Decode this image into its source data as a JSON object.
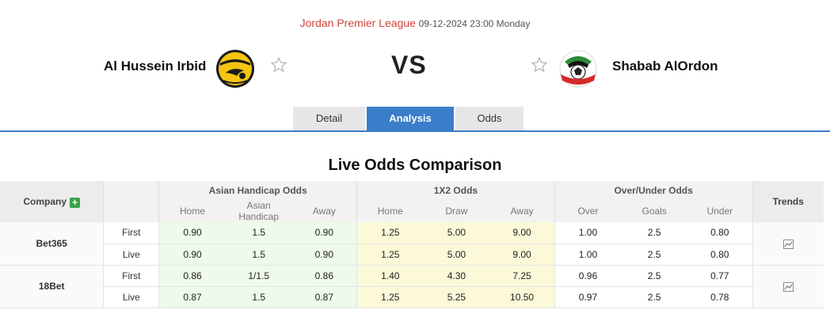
{
  "match": {
    "league": "Jordan Premier League",
    "datetime": "09-12-2024 23:00 Monday",
    "home_team": "Al Hussein Irbid",
    "away_team": "Shabab AlOrdon",
    "vs": "VS"
  },
  "tabs": [
    {
      "label": "Detail",
      "active": false
    },
    {
      "label": "Analysis",
      "active": true
    },
    {
      "label": "Odds",
      "active": false
    }
  ],
  "section_title": "Live Odds Comparison",
  "table": {
    "company_header": "Company",
    "groups": [
      "Asian Handicap Odds",
      "1X2 Odds",
      "Over/Under Odds"
    ],
    "trends_header": "Trends",
    "subheaders": [
      "Home",
      "Asian Handicap",
      "Away",
      "Home",
      "Draw",
      "Away",
      "Over",
      "Goals",
      "Under"
    ],
    "companies": [
      {
        "name": "Bet365",
        "rows": [
          {
            "phase": "First",
            "values": [
              "0.90",
              "1.5",
              "0.90",
              "1.25",
              "5.00",
              "9.00",
              "1.00",
              "2.5",
              "0.80"
            ]
          },
          {
            "phase": "Live",
            "values": [
              "0.90",
              "1.5",
              "0.90",
              "1.25",
              "5.00",
              "9.00",
              "1.00",
              "2.5",
              "0.80"
            ]
          }
        ]
      },
      {
        "name": "18Bet",
        "rows": [
          {
            "phase": "First",
            "values": [
              "0.86",
              "1/1.5",
              "0.86",
              "1.40",
              "4.30",
              "7.25",
              "0.96",
              "2.5",
              "0.77"
            ]
          },
          {
            "phase": "Live",
            "values": [
              "0.87",
              "1.5",
              "0.87",
              "1.25",
              "5.25",
              "10.50",
              "0.97",
              "2.5",
              "0.78"
            ]
          }
        ]
      }
    ]
  },
  "colors": {
    "accent": "#3a7dc9",
    "league": "#d0453a",
    "asian_bg": "#eefaea",
    "x12_bg": "#fcf9d8"
  },
  "icons": [
    "home-team-logo",
    "away-team-logo",
    "star-icon",
    "plus-icon",
    "trend-chart-icon"
  ]
}
